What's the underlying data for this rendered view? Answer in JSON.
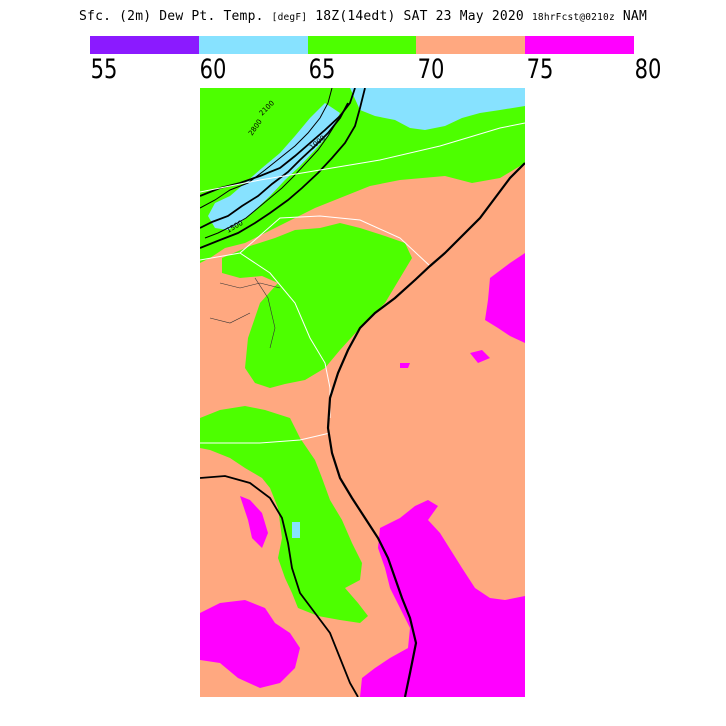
{
  "title": {
    "main": "Sfc. (2m) Dew Pt. Temp.",
    "units": "[degF]",
    "time": "18Z(14edt)",
    "date": "SAT 23 May 2020",
    "forecast": "18hrFcst@0210z",
    "model": "NAM"
  },
  "legend": {
    "bins": [
      {
        "color": "#8b1aff"
      },
      {
        "color": "#87e2ff"
      },
      {
        "color": "#4dff00"
      },
      {
        "color": "#ffa880"
      },
      {
        "color": "#ff00ff"
      }
    ],
    "ticks": [
      "55",
      "60",
      "65",
      "70",
      "75",
      "80"
    ]
  },
  "map": {
    "contour_labels": [
      "2100",
      "2800",
      "1000",
      "1500"
    ],
    "region": "US Southeast coast (Virginia to Florida)"
  }
}
